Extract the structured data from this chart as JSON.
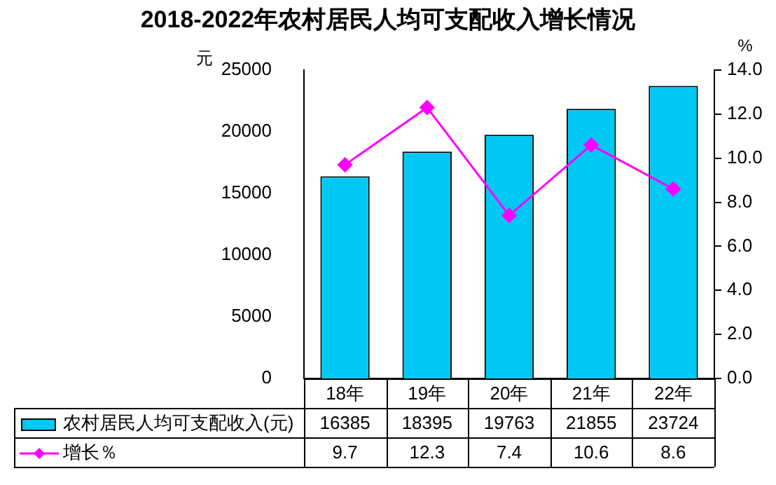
{
  "chart_data": {
    "type": "bar",
    "title": "2018-2022年农村居民人均可支配收入增长情况",
    "ylabel": "元",
    "y2label": "%",
    "categories": [
      "18年",
      "19年",
      "20年",
      "21年",
      "22年"
    ],
    "series": [
      {
        "name": "农村居民人均可支配收入(元)",
        "color": "#00c8f5",
        "values": [
          16385,
          18395,
          19763,
          21855,
          23724
        ]
      },
      {
        "name": "增长％",
        "type": "line",
        "axis": "y2",
        "color": "#ff00ff",
        "marker": "diamond",
        "values": [
          9.7,
          12.3,
          7.4,
          10.6,
          8.6
        ]
      }
    ],
    "ylim": [
      0,
      25000
    ],
    "yticks": [
      0,
      5000,
      10000,
      15000,
      20000,
      25000
    ],
    "y2lim": [
      0,
      14
    ],
    "y2ticks": [
      {
        "value": 0,
        "label": "0.0"
      },
      {
        "value": 2,
        "label": "2.0"
      },
      {
        "value": 4,
        "label": "4.0"
      },
      {
        "value": 6,
        "label": "6.0"
      },
      {
        "value": 8,
        "label": "8.0"
      },
      {
        "value": 10,
        "label": "10.0"
      },
      {
        "value": 12,
        "label": "12.0"
      },
      {
        "value": 14,
        "label": "14.0"
      }
    ],
    "grid": false,
    "legend": "bottom",
    "data_labels": true
  }
}
